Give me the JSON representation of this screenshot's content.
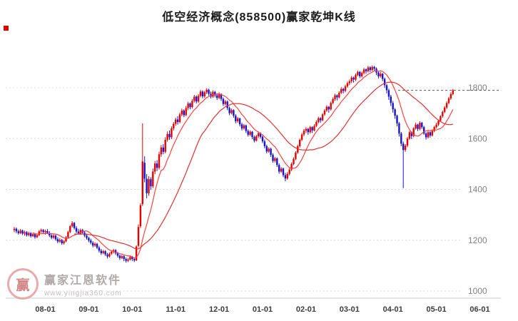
{
  "title": "低空经济概念(858500)赢家乾坤K线",
  "watermark": {
    "name": "赢家江恩软件",
    "url": "www.yingjia360.com",
    "logo_char": "赢"
  },
  "colors": {
    "up": "#e60000",
    "down": "#1414cc",
    "ma_fast": "#ff4040",
    "ma_slow": "#e03030",
    "grid": "#dcdcdc",
    "axis": "#c8c8c8",
    "label": "#808080",
    "xlabel": "#3c3c3c",
    "last_price_line": "#555555",
    "marker": "#dd0000"
  },
  "chart_data": {
    "type": "candlestick",
    "title": "低空经济概念(858500)赢家乾坤K线",
    "xlabel": "",
    "ylabel": "",
    "ylim": [
      980,
      1990
    ],
    "grid": true,
    "y_ticks": [
      1000,
      1200,
      1400,
      1600,
      1800
    ],
    "x_labels": [
      {
        "label": "08-01",
        "index": 15
      },
      {
        "label": "09-01",
        "index": 36
      },
      {
        "label": "10-01",
        "index": 57
      },
      {
        "label": "11-01",
        "index": 78
      },
      {
        "label": "12-01",
        "index": 99
      },
      {
        "label": "01-01",
        "index": 120
      },
      {
        "label": "02-01",
        "index": 141
      },
      {
        "label": "03-01",
        "index": 162
      },
      {
        "label": "04-01",
        "index": 183
      },
      {
        "label": "05-01",
        "index": 204
      },
      {
        "label": "06-01",
        "index": 225
      }
    ],
    "last_price": 1790,
    "ma_periods": [
      10,
      30
    ],
    "candles": [
      [
        1240,
        1252,
        1232,
        1245
      ],
      [
        1245,
        1250,
        1228,
        1235
      ],
      [
        1235,
        1242,
        1222,
        1228
      ],
      [
        1228,
        1244,
        1224,
        1238
      ],
      [
        1238,
        1242,
        1220,
        1226
      ],
      [
        1226,
        1238,
        1218,
        1232
      ],
      [
        1232,
        1236,
        1214,
        1220
      ],
      [
        1220,
        1234,
        1215,
        1228
      ],
      [
        1228,
        1232,
        1210,
        1216
      ],
      [
        1216,
        1230,
        1212,
        1224
      ],
      [
        1224,
        1228,
        1206,
        1212
      ],
      [
        1212,
        1226,
        1208,
        1220
      ],
      [
        1220,
        1240,
        1216,
        1235
      ],
      [
        1235,
        1246,
        1228,
        1240
      ],
      [
        1240,
        1244,
        1225,
        1232
      ],
      [
        1232,
        1242,
        1222,
        1236
      ],
      [
        1236,
        1244,
        1224,
        1228
      ],
      [
        1228,
        1236,
        1212,
        1219
      ],
      [
        1219,
        1226,
        1204,
        1210
      ],
      [
        1210,
        1224,
        1205,
        1218
      ],
      [
        1218,
        1222,
        1198,
        1204
      ],
      [
        1204,
        1212,
        1188,
        1195
      ],
      [
        1195,
        1208,
        1190,
        1201
      ],
      [
        1201,
        1205,
        1182,
        1188
      ],
      [
        1188,
        1200,
        1183,
        1196
      ],
      [
        1196,
        1216,
        1192,
        1211
      ],
      [
        1211,
        1237,
        1208,
        1232
      ],
      [
        1232,
        1260,
        1228,
        1255
      ],
      [
        1255,
        1275,
        1250,
        1268
      ],
      [
        1268,
        1272,
        1242,
        1248
      ],
      [
        1248,
        1255,
        1228,
        1234
      ],
      [
        1234,
        1245,
        1222,
        1226
      ],
      [
        1226,
        1246,
        1222,
        1240
      ],
      [
        1240,
        1245,
        1224,
        1230
      ],
      [
        1230,
        1236,
        1212,
        1218
      ],
      [
        1218,
        1226,
        1202,
        1209
      ],
      [
        1209,
        1214,
        1192,
        1199
      ],
      [
        1199,
        1206,
        1184,
        1190
      ],
      [
        1190,
        1196,
        1172,
        1179
      ],
      [
        1179,
        1192,
        1174,
        1186
      ],
      [
        1186,
        1190,
        1165,
        1171
      ],
      [
        1171,
        1178,
        1152,
        1159
      ],
      [
        1159,
        1166,
        1142,
        1149
      ],
      [
        1149,
        1162,
        1145,
        1157
      ],
      [
        1157,
        1161,
        1138,
        1144
      ],
      [
        1144,
        1150,
        1128,
        1136
      ],
      [
        1136,
        1152,
        1132,
        1147
      ],
      [
        1147,
        1160,
        1142,
        1155
      ],
      [
        1155,
        1166,
        1148,
        1161
      ],
      [
        1161,
        1165,
        1142,
        1149
      ],
      [
        1149,
        1154,
        1132,
        1139
      ],
      [
        1139,
        1144,
        1122,
        1130
      ],
      [
        1130,
        1142,
        1126,
        1137
      ],
      [
        1137,
        1140,
        1118,
        1126
      ],
      [
        1126,
        1132,
        1112,
        1119
      ],
      [
        1119,
        1130,
        1114,
        1124
      ],
      [
        1124,
        1140,
        1120,
        1134
      ],
      [
        1134,
        1138,
        1118,
        1126
      ],
      [
        1126,
        1132,
        1114,
        1121
      ],
      [
        1121,
        1180,
        1118,
        1175
      ],
      [
        1178,
        1262,
        1172,
        1252
      ],
      [
        1255,
        1345,
        1248,
        1338
      ],
      [
        1342,
        1660,
        1335,
        1510
      ],
      [
        1505,
        1530,
        1428,
        1442
      ],
      [
        1442,
        1460,
        1365,
        1385
      ],
      [
        1385,
        1452,
        1375,
        1440
      ],
      [
        1440,
        1448,
        1398,
        1412
      ],
      [
        1412,
        1482,
        1405,
        1470
      ],
      [
        1470,
        1512,
        1460,
        1502
      ],
      [
        1502,
        1515,
        1472,
        1485
      ],
      [
        1485,
        1548,
        1478,
        1538
      ],
      [
        1538,
        1575,
        1528,
        1565
      ],
      [
        1565,
        1578,
        1538,
        1548
      ],
      [
        1548,
        1605,
        1542,
        1595
      ],
      [
        1595,
        1628,
        1588,
        1618
      ],
      [
        1618,
        1632,
        1595,
        1605
      ],
      [
        1605,
        1648,
        1598,
        1640
      ],
      [
        1640,
        1665,
        1632,
        1658
      ],
      [
        1658,
        1682,
        1650,
        1675
      ],
      [
        1675,
        1688,
        1655,
        1665
      ],
      [
        1665,
        1702,
        1660,
        1695
      ],
      [
        1695,
        1718,
        1688,
        1710
      ],
      [
        1710,
        1715,
        1685,
        1692
      ],
      [
        1692,
        1728,
        1688,
        1720
      ],
      [
        1720,
        1745,
        1712,
        1738
      ],
      [
        1738,
        1742,
        1715,
        1724
      ],
      [
        1724,
        1755,
        1718,
        1748
      ],
      [
        1748,
        1772,
        1742,
        1765
      ],
      [
        1765,
        1770,
        1738,
        1746
      ],
      [
        1746,
        1775,
        1740,
        1768
      ],
      [
        1768,
        1792,
        1762,
        1785
      ],
      [
        1785,
        1790,
        1758,
        1766
      ],
      [
        1766,
        1788,
        1760,
        1782
      ],
      [
        1782,
        1798,
        1775,
        1792
      ],
      [
        1792,
        1796,
        1768,
        1776
      ],
      [
        1776,
        1785,
        1758,
        1765
      ],
      [
        1765,
        1790,
        1760,
        1784
      ],
      [
        1784,
        1788,
        1762,
        1770
      ],
      [
        1770,
        1778,
        1752,
        1760
      ],
      [
        1760,
        1782,
        1755,
        1775
      ],
      [
        1775,
        1778,
        1748,
        1756
      ],
      [
        1756,
        1762,
        1728,
        1736
      ],
      [
        1736,
        1752,
        1730,
        1746
      ],
      [
        1746,
        1750,
        1712,
        1720
      ],
      [
        1720,
        1726,
        1692,
        1700
      ],
      [
        1700,
        1718,
        1695,
        1712
      ],
      [
        1712,
        1715,
        1682,
        1690
      ],
      [
        1690,
        1696,
        1660,
        1668
      ],
      [
        1668,
        1685,
        1662,
        1679
      ],
      [
        1679,
        1682,
        1648,
        1656
      ],
      [
        1656,
        1662,
        1632,
        1640
      ],
      [
        1640,
        1658,
        1635,
        1652
      ],
      [
        1652,
        1655,
        1622,
        1630
      ],
      [
        1630,
        1636,
        1608,
        1615
      ],
      [
        1615,
        1632,
        1610,
        1627
      ],
      [
        1627,
        1630,
        1598,
        1606
      ],
      [
        1606,
        1612,
        1585,
        1592
      ],
      [
        1592,
        1615,
        1588,
        1609
      ],
      [
        1609,
        1628,
        1602,
        1621
      ],
      [
        1621,
        1625,
        1600,
        1607
      ],
      [
        1607,
        1612,
        1582,
        1589
      ],
      [
        1589,
        1596,
        1562,
        1570
      ],
      [
        1570,
        1576,
        1542,
        1549
      ],
      [
        1549,
        1566,
        1544,
        1560
      ],
      [
        1560,
        1564,
        1528,
        1536
      ],
      [
        1536,
        1542,
        1505,
        1512
      ],
      [
        1512,
        1528,
        1506,
        1522
      ],
      [
        1522,
        1526,
        1488,
        1496
      ],
      [
        1496,
        1502,
        1462,
        1470
      ],
      [
        1470,
        1488,
        1465,
        1482
      ],
      [
        1482,
        1486,
        1448,
        1456
      ],
      [
        1456,
        1465,
        1432,
        1443
      ],
      [
        1443,
        1468,
        1438,
        1461
      ],
      [
        1461,
        1484,
        1455,
        1478
      ],
      [
        1478,
        1506,
        1472,
        1500
      ],
      [
        1500,
        1526,
        1495,
        1520
      ],
      [
        1520,
        1550,
        1515,
        1545
      ],
      [
        1545,
        1576,
        1540,
        1570
      ],
      [
        1570,
        1600,
        1565,
        1595
      ],
      [
        1595,
        1622,
        1590,
        1616
      ],
      [
        1616,
        1638,
        1610,
        1631
      ],
      [
        1631,
        1645,
        1622,
        1638
      ],
      [
        1638,
        1642,
        1615,
        1625
      ],
      [
        1625,
        1650,
        1620,
        1645
      ],
      [
        1645,
        1648,
        1622,
        1632
      ],
      [
        1632,
        1656,
        1628,
        1650
      ],
      [
        1650,
        1672,
        1645,
        1665
      ],
      [
        1665,
        1686,
        1660,
        1680
      ],
      [
        1680,
        1684,
        1662,
        1672
      ],
      [
        1672,
        1700,
        1668,
        1695
      ],
      [
        1695,
        1716,
        1690,
        1710
      ],
      [
        1710,
        1731,
        1705,
        1725
      ],
      [
        1725,
        1728,
        1702,
        1715
      ],
      [
        1715,
        1746,
        1710,
        1740
      ],
      [
        1740,
        1762,
        1735,
        1755
      ],
      [
        1755,
        1776,
        1748,
        1770
      ],
      [
        1770,
        1774,
        1750,
        1762
      ],
      [
        1762,
        1786,
        1758,
        1780
      ],
      [
        1780,
        1802,
        1775,
        1795
      ],
      [
        1795,
        1800,
        1778,
        1788
      ],
      [
        1788,
        1812,
        1782,
        1805
      ],
      [
        1805,
        1824,
        1800,
        1818
      ],
      [
        1818,
        1832,
        1810,
        1825
      ],
      [
        1825,
        1846,
        1818,
        1840
      ],
      [
        1840,
        1844,
        1820,
        1832
      ],
      [
        1832,
        1856,
        1826,
        1850
      ],
      [
        1850,
        1868,
        1845,
        1862
      ],
      [
        1862,
        1866,
        1838,
        1845
      ],
      [
        1845,
        1864,
        1840,
        1858
      ],
      [
        1858,
        1878,
        1852,
        1872
      ],
      [
        1872,
        1876,
        1855,
        1865
      ],
      [
        1865,
        1886,
        1860,
        1880
      ],
      [
        1880,
        1884,
        1862,
        1870
      ],
      [
        1870,
        1888,
        1865,
        1882
      ],
      [
        1882,
        1886,
        1866,
        1875
      ],
      [
        1875,
        1880,
        1850,
        1860
      ],
      [
        1860,
        1866,
        1836,
        1845
      ],
      [
        1845,
        1862,
        1840,
        1855
      ],
      [
        1855,
        1858,
        1826,
        1835
      ],
      [
        1835,
        1840,
        1800,
        1810
      ],
      [
        1810,
        1815,
        1778,
        1790
      ],
      [
        1790,
        1796,
        1752,
        1765
      ],
      [
        1765,
        1772,
        1728,
        1740
      ],
      [
        1740,
        1748,
        1702,
        1715
      ],
      [
        1715,
        1720,
        1678,
        1690
      ],
      [
        1690,
        1694,
        1648,
        1660
      ],
      [
        1660,
        1665,
        1608,
        1620
      ],
      [
        1620,
        1626,
        1570,
        1580
      ],
      [
        1580,
        1588,
        1405,
        1555
      ],
      [
        1555,
        1578,
        1548,
        1572
      ],
      [
        1572,
        1606,
        1566,
        1600
      ],
      [
        1600,
        1630,
        1595,
        1625
      ],
      [
        1625,
        1628,
        1598,
        1610
      ],
      [
        1610,
        1645,
        1605,
        1640
      ],
      [
        1640,
        1662,
        1635,
        1655
      ],
      [
        1655,
        1658,
        1630,
        1638
      ],
      [
        1638,
        1668,
        1632,
        1662
      ],
      [
        1662,
        1666,
        1638,
        1645
      ],
      [
        1645,
        1650,
        1614,
        1620
      ],
      [
        1620,
        1625,
        1596,
        1605
      ],
      [
        1605,
        1630,
        1600,
        1625
      ],
      [
        1625,
        1628,
        1604,
        1612
      ],
      [
        1612,
        1636,
        1608,
        1630
      ],
      [
        1630,
        1650,
        1625,
        1645
      ],
      [
        1645,
        1662,
        1640,
        1655
      ],
      [
        1655,
        1675,
        1650,
        1670
      ],
      [
        1670,
        1692,
        1665,
        1688
      ],
      [
        1688,
        1710,
        1682,
        1705
      ],
      [
        1705,
        1728,
        1700,
        1722
      ],
      [
        1722,
        1746,
        1716,
        1740
      ],
      [
        1740,
        1764,
        1735,
        1758
      ],
      [
        1758,
        1782,
        1752,
        1775
      ],
      [
        1775,
        1795,
        1770,
        1790
      ]
    ]
  }
}
